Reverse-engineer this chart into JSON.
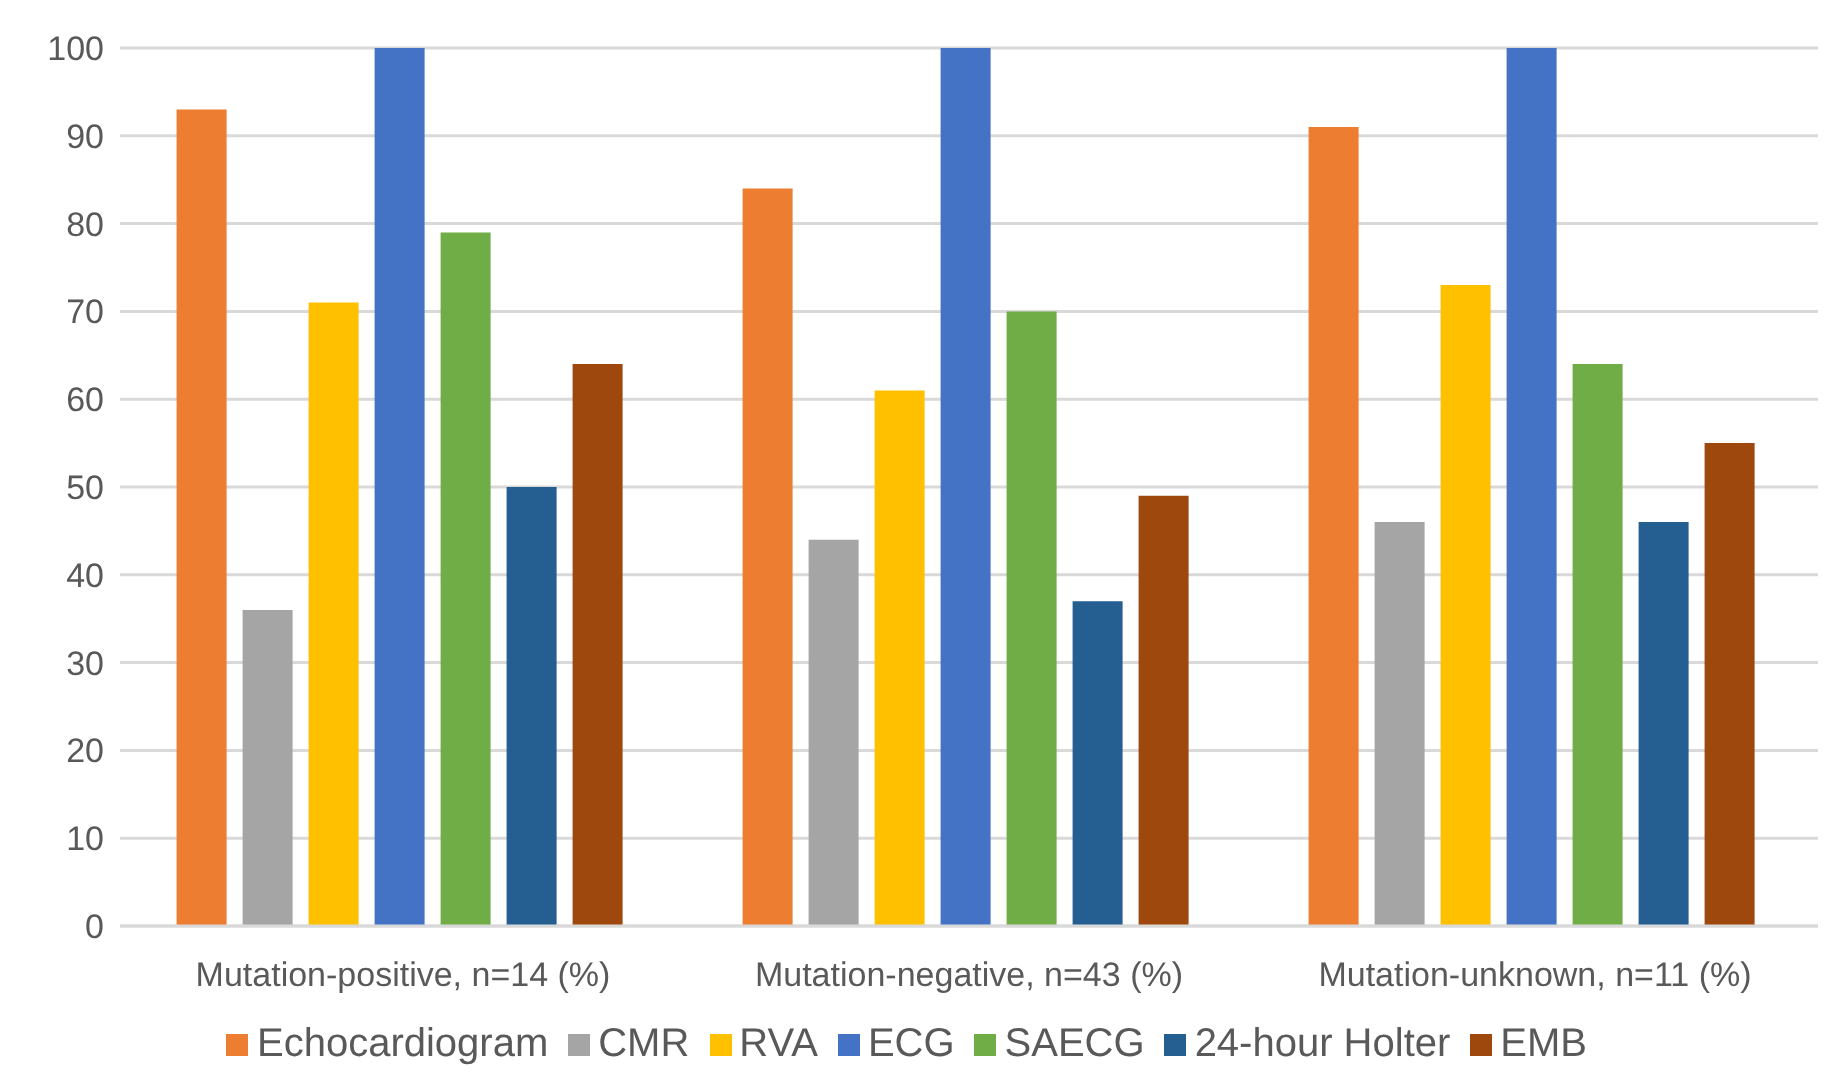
{
  "chart_data": {
    "type": "bar",
    "categories": [
      "Mutation-positive, n=14 (%)",
      "Mutation-negative, n=43 (%)",
      "Mutation-unknown, n=11 (%)"
    ],
    "series": [
      {
        "name": "Echocardiogram",
        "color": "#ed7d31",
        "values": [
          93,
          84,
          91
        ]
      },
      {
        "name": "CMR",
        "color": "#a5a5a5",
        "values": [
          36,
          44,
          46
        ]
      },
      {
        "name": "RVA",
        "color": "#ffc000",
        "values": [
          71,
          61,
          73
        ]
      },
      {
        "name": "ECG",
        "color": "#4472c4",
        "values": [
          100,
          100,
          100
        ]
      },
      {
        "name": "SAECG",
        "color": "#70ad47",
        "values": [
          79,
          70,
          64
        ]
      },
      {
        "name": "24-hour Holter",
        "color": "#255e91",
        "values": [
          50,
          37,
          46
        ]
      },
      {
        "name": "EMB",
        "color": "#9e480e",
        "values": [
          64,
          49,
          55
        ]
      }
    ],
    "ylim": [
      0,
      100
    ],
    "yticks": [
      0,
      10,
      20,
      30,
      40,
      50,
      60,
      70,
      80,
      90,
      100
    ],
    "grid": "y",
    "legend": "bottom"
  }
}
